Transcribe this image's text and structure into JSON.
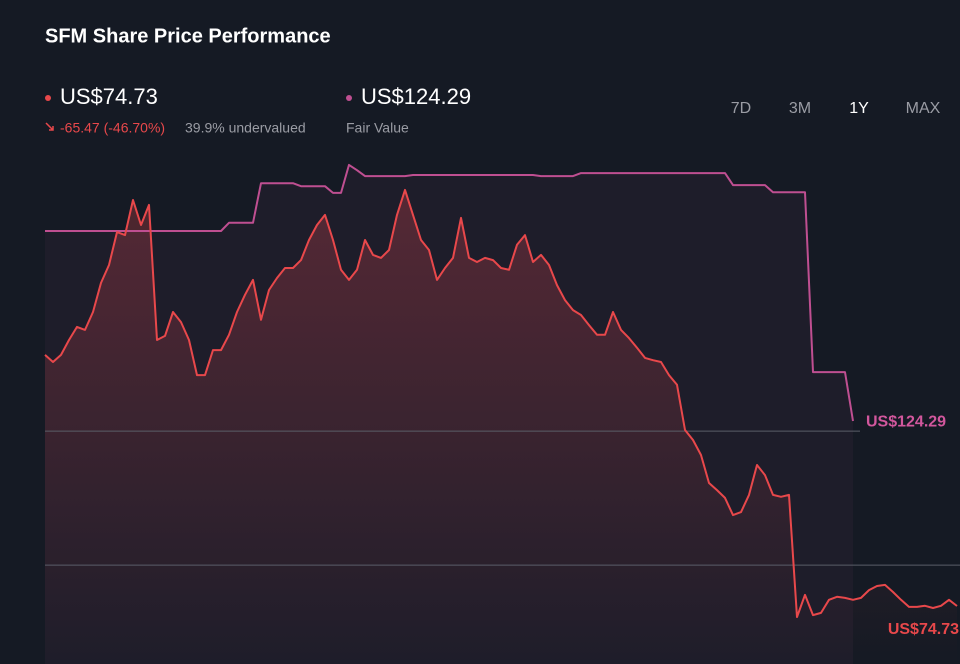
{
  "chart_data": {
    "type": "line",
    "title": "SFM Share Price Performance",
    "change": "-65.47 (-46.70%)",
    "valuation": "39.9% undervalued",
    "ranges": [
      "7D",
      "3M",
      "1Y",
      "MAX"
    ],
    "selected_range": "1Y",
    "ylim": [
      59.2,
      196.9
    ],
    "gridlines": [
      121.6,
      85.7
    ],
    "series": [
      {
        "color": "#e8484b",
        "end_label": "US$74.73",
        "values": [
          142.0,
          140.1,
          142.0,
          146.0,
          149.5,
          148.7,
          153.5,
          161.3,
          166.1,
          174.9,
          174.1,
          183.5,
          176.8,
          182.2,
          146.0,
          147.1,
          153.5,
          150.8,
          146.0,
          136.6,
          136.6,
          143.3,
          143.3,
          147.4,
          153.5,
          158.1,
          162.1,
          151.4,
          159.4,
          162.6,
          165.3,
          165.3,
          167.4,
          172.8,
          176.8,
          179.5,
          172.8,
          164.8,
          162.1,
          164.8,
          172.8,
          168.8,
          168.0,
          170.1,
          179.5,
          186.2,
          179.5,
          172.8,
          170.1,
          162.1,
          165.3,
          168.0,
          178.7,
          168.0,
          166.9,
          168.0,
          167.4,
          165.3,
          164.8,
          171.5,
          174.1,
          166.9,
          168.8,
          166.1,
          160.7,
          156.7,
          154.0,
          152.7,
          150.0,
          147.4,
          147.4,
          153.5,
          148.7,
          146.5,
          143.9,
          141.2,
          140.6,
          140.1,
          136.6,
          134.0,
          121.9,
          119.2,
          115.2,
          107.7,
          105.8,
          103.7,
          99.1,
          99.9,
          104.5,
          112.5,
          109.8,
          104.5,
          104.0,
          104.5,
          71.8,
          77.7,
          72.3,
          72.9,
          76.4,
          77.2,
          76.9,
          76.4,
          76.9,
          79.0,
          80.1,
          80.4,
          78.5,
          76.4,
          74.5,
          74.5,
          74.8,
          74.2,
          74.8,
          76.4,
          74.73
        ]
      },
      {
        "name": "Fair Value",
        "color": "#bf4f91",
        "end_label": "US$124.29",
        "values": [
          175.2,
          175.2,
          175.2,
          175.2,
          175.2,
          175.2,
          175.2,
          175.2,
          175.2,
          175.2,
          175.2,
          175.2,
          175.2,
          175.2,
          175.2,
          175.2,
          175.2,
          175.2,
          175.2,
          175.2,
          175.2,
          175.2,
          175.2,
          177.4,
          177.4,
          177.4,
          177.4,
          188.0,
          188.0,
          188.0,
          188.0,
          188.0,
          187.2,
          187.2,
          187.2,
          187.2,
          185.4,
          185.4,
          192.9,
          191.5,
          189.9,
          189.9,
          189.9,
          189.9,
          189.9,
          189.9,
          190.2,
          190.2,
          190.2,
          190.2,
          190.2,
          190.2,
          190.2,
          190.2,
          190.2,
          190.2,
          190.2,
          190.2,
          190.2,
          190.2,
          190.2,
          190.2,
          189.9,
          189.9,
          189.9,
          189.9,
          189.9,
          190.7,
          190.7,
          190.7,
          190.7,
          190.7,
          190.7,
          190.7,
          190.7,
          190.7,
          190.7,
          190.7,
          190.7,
          190.7,
          190.7,
          190.7,
          190.7,
          190.7,
          190.7,
          190.7,
          187.5,
          187.5,
          187.5,
          187.5,
          187.5,
          185.6,
          185.6,
          185.6,
          185.6,
          185.6,
          137.4,
          137.4,
          137.4,
          137.4,
          137.4,
          124.29,
          null,
          null,
          null,
          null,
          null,
          null,
          null,
          null,
          null,
          null,
          null,
          null,
          null
        ]
      }
    ]
  }
}
